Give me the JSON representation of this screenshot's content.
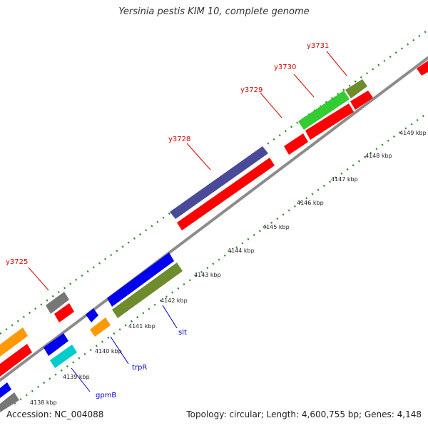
{
  "title": "Yersinia pestis KIM 10, complete genome",
  "accession": "Accession: NC_004088",
  "stats": "Topology: circular; Length: 4,600,755 bp; Genes: 4,148",
  "colors": {
    "red": "#ff0000",
    "navy": "#4a4a9a",
    "green": "#33cc33",
    "olive": "#6e8c2e",
    "blue": "#0000ee",
    "orange": "#ff9900",
    "cyan": "#00cccc",
    "gray": "#777777",
    "backbone": "#8c8c8c",
    "tick": "#2e8b2e",
    "label_red": "#dd0000",
    "label_blue": "#0000cc"
  },
  "kbp_ticks": [
    "4138 kbp",
    "4139 kbp",
    "4140 kbp",
    "4141 kbp",
    "4142 kbp",
    "4143 kbp",
    "4144 kbp",
    "4145 kbp",
    "4146 kbp",
    "4147 kbp",
    "4148 kbp",
    "4149 kbp"
  ],
  "gene_labels": [
    "y3725",
    "y3728",
    "y3729",
    "y3730",
    "y3731",
    "trpR",
    "gpmB",
    "slt"
  ]
}
